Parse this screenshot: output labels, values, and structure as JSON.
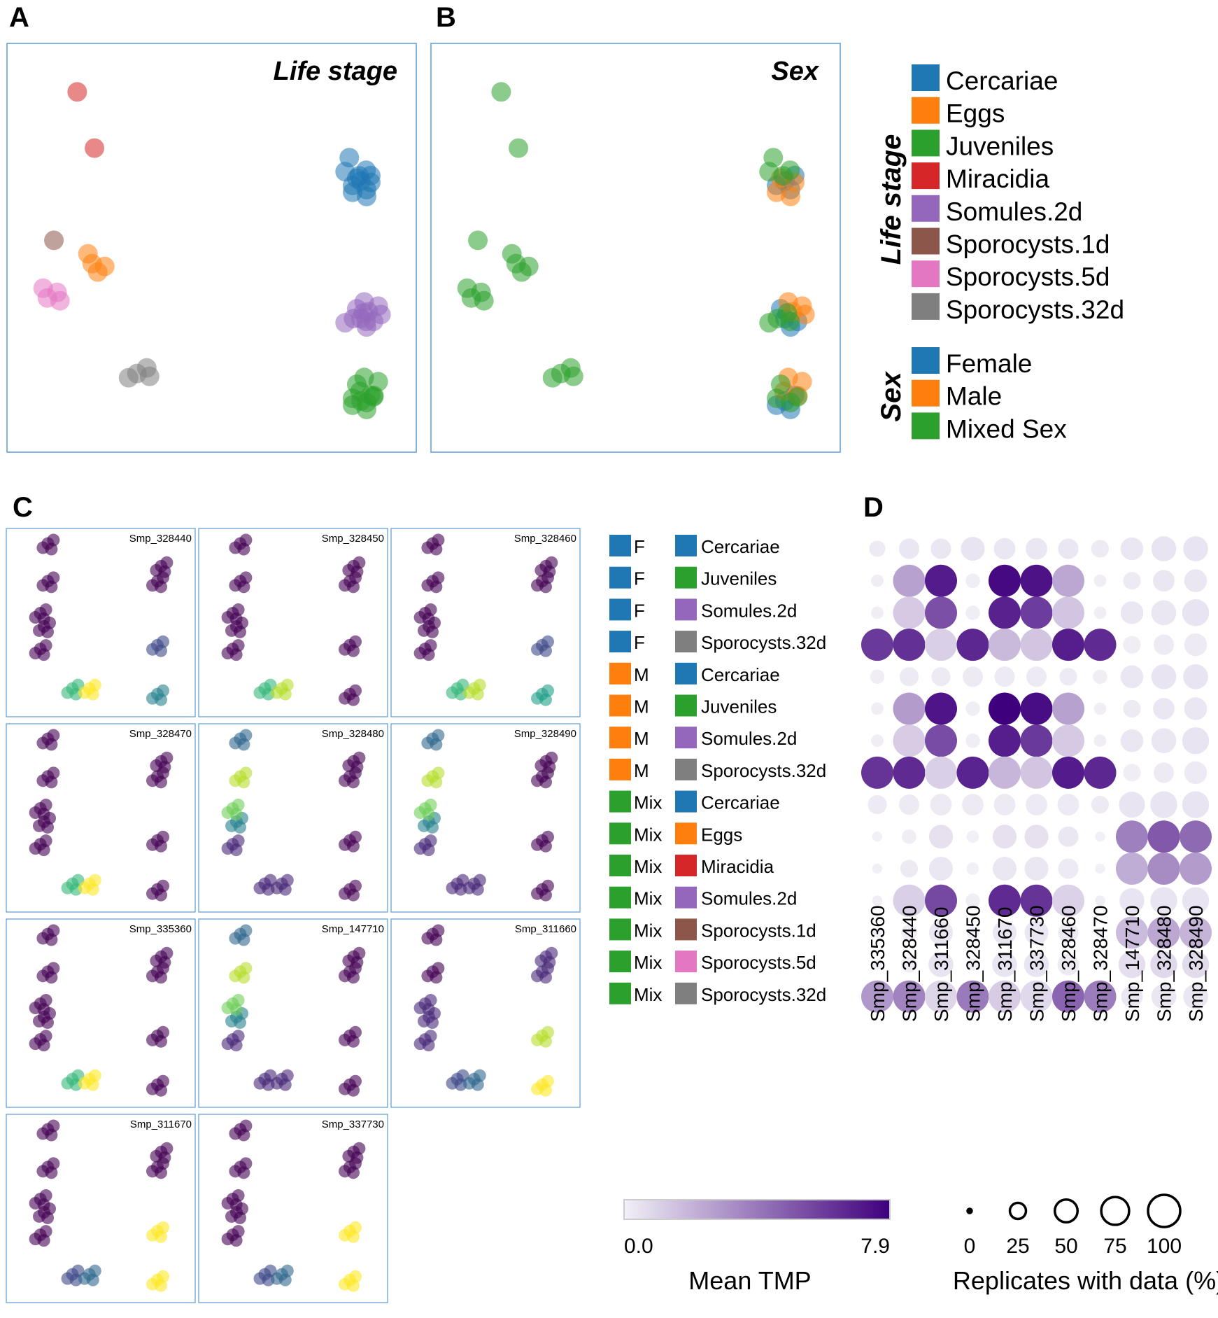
{
  "panel_labels": {
    "a": "A",
    "b": "B",
    "c": "C",
    "d": "D"
  },
  "colors": {
    "Cercariae": "#1f77b4",
    "Eggs": "#ff7f0e",
    "Juveniles": "#2ca02c",
    "Miracidia": "#d62728",
    "Somules.2d": "#9467bd",
    "Sporocysts.1d": "#8c564b",
    "Sporocysts.5d": "#e377c2",
    "Sporocysts.32d": "#7f7f7f",
    "Female": "#1f77b4",
    "Male": "#ff7f0e",
    "Mixed Sex": "#2ca02c",
    "heat_low": "#f2f0f7",
    "heat_high": "#3f007d",
    "panel_border": "#5b9bd5"
  },
  "legend": {
    "life_stage_title": "Life stage",
    "life_stage_items": [
      "Cercariae",
      "Eggs",
      "Juveniles",
      "Miracidia",
      "Somules.2d",
      "Sporocysts.1d",
      "Sporocysts.5d",
      "Sporocysts.32d"
    ],
    "sex_title": "Sex",
    "sex_items": [
      "Female",
      "Male",
      "Mixed Sex"
    ]
  },
  "combo_legend": [
    {
      "sex": "F",
      "sex_key": "Female",
      "stage": "Cercariae"
    },
    {
      "sex": "F",
      "sex_key": "Female",
      "stage": "Juveniles"
    },
    {
      "sex": "F",
      "sex_key": "Female",
      "stage": "Somules.2d"
    },
    {
      "sex": "F",
      "sex_key": "Female",
      "stage": "Sporocysts.32d"
    },
    {
      "sex": "M",
      "sex_key": "Male",
      "stage": "Cercariae"
    },
    {
      "sex": "M",
      "sex_key": "Male",
      "stage": "Juveniles"
    },
    {
      "sex": "M",
      "sex_key": "Male",
      "stage": "Somules.2d"
    },
    {
      "sex": "M",
      "sex_key": "Male",
      "stage": "Sporocysts.32d"
    },
    {
      "sex": "Mix",
      "sex_key": "Mixed Sex",
      "stage": "Cercariae"
    },
    {
      "sex": "Mix",
      "sex_key": "Mixed Sex",
      "stage": "Eggs"
    },
    {
      "sex": "Mix",
      "sex_key": "Mixed Sex",
      "stage": "Miracidia"
    },
    {
      "sex": "Mix",
      "sex_key": "Mixed Sex",
      "stage": "Somules.2d"
    },
    {
      "sex": "Mix",
      "sex_key": "Mixed Sex",
      "stage": "Sporocysts.1d"
    },
    {
      "sex": "Mix",
      "sex_key": "Mixed Sex",
      "stage": "Sporocysts.5d"
    },
    {
      "sex": "Mix",
      "sex_key": "Mixed Sex",
      "stage": "Sporocysts.32d"
    }
  ],
  "color_scale": {
    "min_label": "0.0",
    "max_label": "7.9",
    "title": "Mean TMP"
  },
  "size_scale": {
    "labels": [
      "0",
      "25",
      "50",
      "75",
      "100"
    ],
    "title": "Replicates with data (%)"
  },
  "chart_data": [
    {
      "type": "scatter",
      "title": "Life stage",
      "color_by": "life stage",
      "groups": [
        {
          "stage": "Miracidia",
          "sex": "Mixed Sex",
          "x": -2.2,
          "y": 3.4
        },
        {
          "stage": "Miracidia",
          "sex": "Mixed Sex",
          "x": -2.1,
          "y": 2.5
        },
        {
          "stage": "Sporocysts.1d",
          "sex": "Mixed Sex",
          "x": -2.4,
          "y": 1.3
        },
        {
          "stage": "Eggs",
          "sex": "Mixed Sex",
          "x": -2.0,
          "y": 0.9
        },
        {
          "stage": "Sporocysts.5d",
          "sex": "Mixed Sex",
          "x": -2.6,
          "y": 0.4
        },
        {
          "stage": "Sporocysts.32d",
          "sex": "Mixed Sex",
          "x": -1.4,
          "y": -0.7
        },
        {
          "stage": "Cercariae",
          "sex": "Female",
          "x": 1.6,
          "y": 2.1
        },
        {
          "stage": "Cercariae",
          "sex": "Male",
          "x": 1.6,
          "y": 2.0
        },
        {
          "stage": "Cercariae",
          "sex": "Mixed Sex",
          "x": 1.5,
          "y": 2.3
        },
        {
          "stage": "Somules.2d",
          "sex": "Female",
          "x": 1.6,
          "y": 0.1
        },
        {
          "stage": "Somules.2d",
          "sex": "Male",
          "x": 1.7,
          "y": 0.2
        },
        {
          "stage": "Somules.2d",
          "sex": "Mixed Sex",
          "x": 1.5,
          "y": 0.1
        },
        {
          "stage": "Juveniles",
          "sex": "Female",
          "x": 1.6,
          "y": -1.1
        },
        {
          "stage": "Juveniles",
          "sex": "Male",
          "x": 1.7,
          "y": -0.9
        },
        {
          "stage": "Juveniles",
          "sex": "Mixed Sex",
          "x": 1.6,
          "y": -1.0
        }
      ]
    },
    {
      "type": "scatter",
      "title": "Sex",
      "color_by": "sex",
      "groups": "same points as Life stage panel"
    },
    {
      "type": "scatter",
      "title": "C",
      "panels": [
        "Smp_328440",
        "Smp_328450",
        "Smp_328460",
        "Smp_328470",
        "Smp_328480",
        "Smp_328490",
        "Smp_335360",
        "Smp_147710",
        "Smp_311660",
        "Smp_311670",
        "Smp_337730"
      ],
      "scale": "viridis, gene expression"
    },
    {
      "type": "heatmap",
      "x": [
        "Smp_335360",
        "Smp_328440",
        "Smp_311660",
        "Smp_328450",
        "Smp_311670",
        "Smp_337730",
        "Smp_328460",
        "Smp_328470",
        "Smp_147710",
        "Smp_328480",
        "Smp_328490"
      ],
      "rows": [
        "F Cercariae",
        "F Juveniles",
        "F Somules.2d",
        "F Sporocysts.32d",
        "M Cercariae",
        "M Juveniles",
        "M Somules.2d",
        "M Sporocysts.32d",
        "Mix Cercariae",
        "Mix Eggs",
        "Mix Miracidia",
        "Mix Somules.2d",
        "Mix Sporocysts.1d",
        "Mix Sporocysts.5d",
        "Mix Sporocysts.32d"
      ],
      "values": [
        [
          0.2,
          0.3,
          0.3,
          0.4,
          0.3,
          0.3,
          0.3,
          0.2,
          0.3,
          0.4,
          0.4
        ],
        [
          0.1,
          2.6,
          7.0,
          0.1,
          7.6,
          7.3,
          2.4,
          0.1,
          0.2,
          0.3,
          0.3
        ],
        [
          0.1,
          1.3,
          5.3,
          0.1,
          6.8,
          5.9,
          1.4,
          0.1,
          0.3,
          0.3,
          0.4
        ],
        [
          6.0,
          6.3,
          1.1,
          6.6,
          1.8,
          1.4,
          6.9,
          6.5,
          0.1,
          0.2,
          0.2
        ],
        [
          0.1,
          0.2,
          0.2,
          0.2,
          0.2,
          0.2,
          0.2,
          0.1,
          0.3,
          0.4,
          0.4
        ],
        [
          0.1,
          2.8,
          7.2,
          0.1,
          7.9,
          7.5,
          2.6,
          0.1,
          0.2,
          0.3,
          0.3
        ],
        [
          0.1,
          1.2,
          5.4,
          0.1,
          6.9,
          6.0,
          1.3,
          0.1,
          0.3,
          0.3,
          0.4
        ],
        [
          6.2,
          6.5,
          1.1,
          6.7,
          1.9,
          1.4,
          7.0,
          6.6,
          0.1,
          0.2,
          0.2
        ],
        [
          0.2,
          0.2,
          0.2,
          0.2,
          0.2,
          0.2,
          0.2,
          0.2,
          0.4,
          0.4,
          0.4
        ],
        [
          0.0,
          0.1,
          0.5,
          0.0,
          0.5,
          0.5,
          0.3,
          0.0,
          3.7,
          5.0,
          4.4
        ],
        [
          0.0,
          0.2,
          0.3,
          0.0,
          0.3,
          0.3,
          0.2,
          0.0,
          2.2,
          3.3,
          2.8
        ],
        [
          0.1,
          1.1,
          5.5,
          0.1,
          6.5,
          6.2,
          1.0,
          0.1,
          0.4,
          0.4,
          0.4
        ],
        [
          0.0,
          0.1,
          0.3,
          0.0,
          0.3,
          0.3,
          0.2,
          0.0,
          1.7,
          2.4,
          2.0
        ],
        [
          0.0,
          0.1,
          0.4,
          0.0,
          0.4,
          0.4,
          0.2,
          0.0,
          0.6,
          0.8,
          0.7
        ],
        [
          2.9,
          3.6,
          0.9,
          3.9,
          1.2,
          0.8,
          4.6,
          3.8,
          0.3,
          0.3,
          0.3
        ]
      ],
      "sizes": [
        [
          25,
          40,
          40,
          55,
          45,
          45,
          40,
          30,
          50,
          60,
          60
        ],
        [
          15,
          100,
          100,
          20,
          100,
          100,
          100,
          15,
          30,
          45,
          50
        ],
        [
          15,
          100,
          100,
          20,
          100,
          100,
          100,
          15,
          50,
          60,
          70
        ],
        [
          100,
          100,
          100,
          100,
          100,
          100,
          100,
          100,
          30,
          40,
          50
        ],
        [
          20,
          35,
          35,
          40,
          40,
          40,
          30,
          20,
          50,
          60,
          60
        ],
        [
          15,
          100,
          100,
          20,
          100,
          100,
          100,
          15,
          30,
          45,
          50
        ],
        [
          15,
          100,
          100,
          20,
          100,
          100,
          100,
          15,
          50,
          60,
          70
        ],
        [
          100,
          100,
          100,
          100,
          100,
          100,
          100,
          100,
          30,
          40,
          50
        ],
        [
          35,
          40,
          45,
          45,
          45,
          45,
          45,
          30,
          65,
          70,
          70
        ],
        [
          10,
          20,
          55,
          15,
          55,
          55,
          40,
          10,
          100,
          100,
          100
        ],
        [
          10,
          30,
          55,
          15,
          55,
          55,
          40,
          10,
          100,
          100,
          100
        ],
        [
          10,
          100,
          100,
          20,
          100,
          100,
          100,
          10,
          60,
          70,
          70
        ],
        [
          10,
          25,
          55,
          15,
          55,
          55,
          40,
          10,
          100,
          100,
          100
        ],
        [
          10,
          25,
          60,
          15,
          60,
          60,
          45,
          10,
          70,
          70,
          70
        ],
        [
          100,
          100,
          100,
          100,
          100,
          100,
          100,
          100,
          45,
          60,
          60
        ]
      ],
      "color_range": [
        0,
        7.9
      ],
      "size_range": [
        0,
        100
      ],
      "color_label": "Mean TMP",
      "size_label": "Replicates with data (%)"
    }
  ]
}
